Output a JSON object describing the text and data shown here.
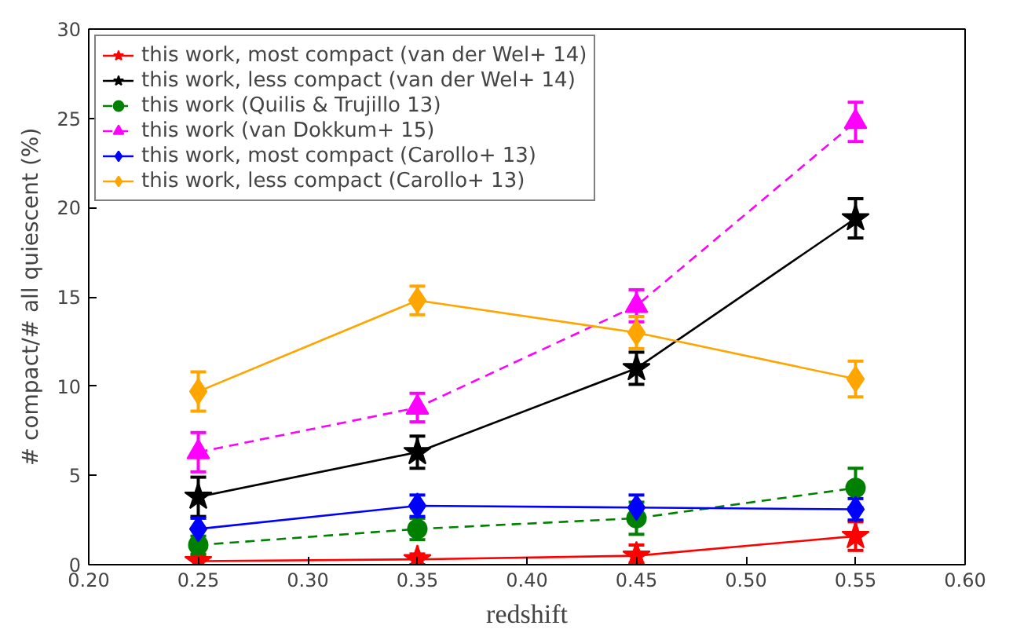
{
  "chart_data": {
    "type": "line",
    "xlabel": "redshift",
    "ylabel": "# compact/# all quiescent (%)",
    "x": [
      0.25,
      0.35,
      0.45,
      0.55
    ],
    "xlim": [
      0.2,
      0.6
    ],
    "xticks": [
      {
        "value": 0.2,
        "label": "0.20"
      },
      {
        "value": 0.25,
        "label": "0.25"
      },
      {
        "value": 0.3,
        "label": "0.30"
      },
      {
        "value": 0.35,
        "label": "0.35"
      },
      {
        "value": 0.4,
        "label": "0.40"
      },
      {
        "value": 0.45,
        "label": "0.45"
      },
      {
        "value": 0.5,
        "label": "0.50"
      },
      {
        "value": 0.55,
        "label": "0.55"
      },
      {
        "value": 0.6,
        "label": "0.60"
      }
    ],
    "ylim": [
      0,
      30
    ],
    "yticks": [
      0,
      5,
      10,
      15,
      20,
      25,
      30
    ],
    "legend": "top left",
    "series": [
      {
        "name": "this work, most compact (van der Wel+ 14)",
        "color": "#ff0000",
        "marker": "star",
        "line_style": "solid",
        "values": [
          0.2,
          0.3,
          0.5,
          1.6
        ],
        "errors": [
          0.3,
          0.3,
          [
            0.1,
            1.1
          ],
          0.8
        ]
      },
      {
        "name": "this work, less compact (van der Wel+ 14)",
        "color": "#000000",
        "marker": "star",
        "line_style": "solid",
        "values": [
          3.8,
          6.3,
          11.0,
          19.4
        ],
        "errors": [
          1.1,
          0.9,
          0.9,
          1.1
        ]
      },
      {
        "name": "this work (Quilis & Trujillo 13)",
        "color": "#008000",
        "marker": "circle",
        "line_style": "dashed",
        "values": [
          1.1,
          2.0,
          2.6,
          4.3
        ],
        "errors": [
          0.5,
          0.6,
          0.9,
          1.1
        ]
      },
      {
        "name": "this work (van Dokkum+ 15)",
        "color": "#ff00ff",
        "marker": "triangle",
        "line_style": "dashed",
        "values": [
          6.3,
          8.8,
          14.5,
          24.8
        ],
        "errors": [
          1.1,
          0.8,
          0.9,
          1.1
        ]
      },
      {
        "name": "this work, most compact (Carollo+ 13)",
        "color": "#0000ff",
        "marker": "diamond",
        "line_style": "solid",
        "values": [
          2.0,
          3.3,
          3.2,
          3.1
        ],
        "errors": [
          0.6,
          0.6,
          0.7,
          0.6
        ]
      },
      {
        "name": "this work, less compact (Carollo+ 13)",
        "color": "#ffa500",
        "marker": "diamond",
        "line_style": "solid",
        "values": [
          9.7,
          14.8,
          13.0,
          10.4
        ],
        "errors": [
          1.1,
          0.8,
          0.9,
          1.0
        ]
      }
    ]
  }
}
